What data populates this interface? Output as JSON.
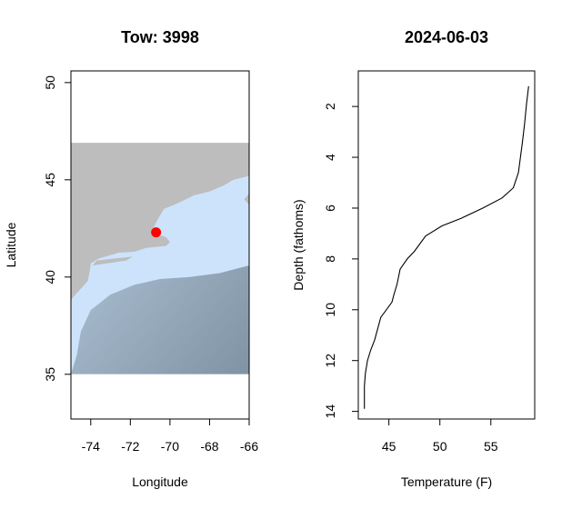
{
  "chart_data": [
    {
      "type": "map",
      "title": "Tow: 3998",
      "xlabel": "Longitude",
      "ylabel": "Latitude",
      "xlim": [
        -75,
        -66
      ],
      "ylim": [
        32.7,
        50.6
      ],
      "xticks": [
        -74,
        -72,
        -70,
        -68,
        -66
      ],
      "yticks": [
        35,
        40,
        45,
        50
      ],
      "map_extent": {
        "lon": [
          -75,
          -66
        ],
        "lat": [
          35,
          46.9
        ]
      },
      "colors": {
        "land": "#bdbdbd",
        "shelf": "#cde3fb",
        "deep": "#7f93a4",
        "point": "#ff0000"
      },
      "points": [
        {
          "lon": -70.7,
          "lat": 42.3
        }
      ]
    },
    {
      "type": "line",
      "title": "2024-06-03",
      "xlabel": "Temperature (F)",
      "ylabel": "Depth (fathoms)",
      "xlim": [
        42.0,
        59.3
      ],
      "ylim": [
        14.3,
        0.6
      ],
      "xticks": [
        45,
        50,
        55
      ],
      "yticks": [
        2,
        4,
        6,
        8,
        10,
        12,
        14
      ],
      "series": [
        {
          "x": [
            42.6,
            42.6,
            42.7,
            42.9,
            43.2,
            43.6,
            44.2,
            45.3,
            45.5,
            45.8,
            46.1,
            46.8,
            47.5,
            48.6,
            50.2,
            52.1,
            54.2,
            56.1,
            57.2,
            57.7,
            57.9,
            58.1,
            58.3,
            58.5,
            58.7
          ],
          "y": [
            13.9,
            13.0,
            12.5,
            12.0,
            11.6,
            11.2,
            10.3,
            9.7,
            9.4,
            9.0,
            8.4,
            8.0,
            7.7,
            7.1,
            6.7,
            6.4,
            6.0,
            5.6,
            5.2,
            4.6,
            4.0,
            3.4,
            2.7,
            1.9,
            1.2
          ]
        }
      ]
    }
  ]
}
